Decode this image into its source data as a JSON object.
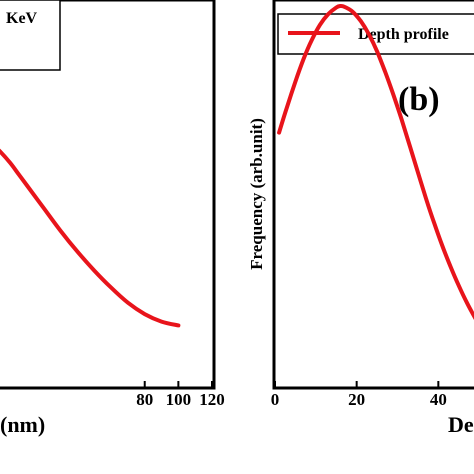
{
  "chart_data": [
    {
      "type": "line",
      "panel": "a",
      "xlabel": "(nm)",
      "ylabel": "",
      "xlim": [
        -12,
        120
      ],
      "xticks": [
        80,
        100,
        120
      ],
      "legend": {
        "label": "KeV",
        "placement": "top-left"
      },
      "series": [
        {
          "color": "#e8141b",
          "x": [
            -12,
            -6,
            0,
            5,
            10,
            20,
            30,
            40,
            50,
            60,
            70,
            80,
            90,
            100
          ],
          "y": [
            0.64,
            0.615,
            0.585,
            0.555,
            0.525,
            0.465,
            0.405,
            0.35,
            0.3,
            0.255,
            0.215,
            0.185,
            0.165,
            0.155
          ]
        }
      ]
    },
    {
      "type": "line",
      "panel": "b",
      "panel_tag": "(b)",
      "xlabel": "De",
      "ylabel": "Frequency (arb.unit)",
      "xlim": [
        0,
        60
      ],
      "xticks": [
        0,
        20,
        40
      ],
      "legend": {
        "label": "Depth profile",
        "placement": "top-right"
      },
      "series": [
        {
          "name": "Depth profile",
          "color": "#e8141b",
          "x": [
            1,
            3,
            5,
            7,
            9,
            11,
            13,
            15,
            16,
            17,
            19,
            21,
            23,
            25,
            27,
            29,
            31,
            33,
            35,
            37,
            39,
            41,
            43,
            45,
            47,
            49,
            51
          ],
          "y": [
            0.665,
            0.735,
            0.8,
            0.86,
            0.91,
            0.95,
            0.978,
            0.996,
            1.0,
            0.998,
            0.985,
            0.96,
            0.925,
            0.88,
            0.825,
            0.765,
            0.7,
            0.63,
            0.56,
            0.49,
            0.425,
            0.365,
            0.31,
            0.26,
            0.215,
            0.175,
            0.14
          ]
        }
      ]
    }
  ]
}
